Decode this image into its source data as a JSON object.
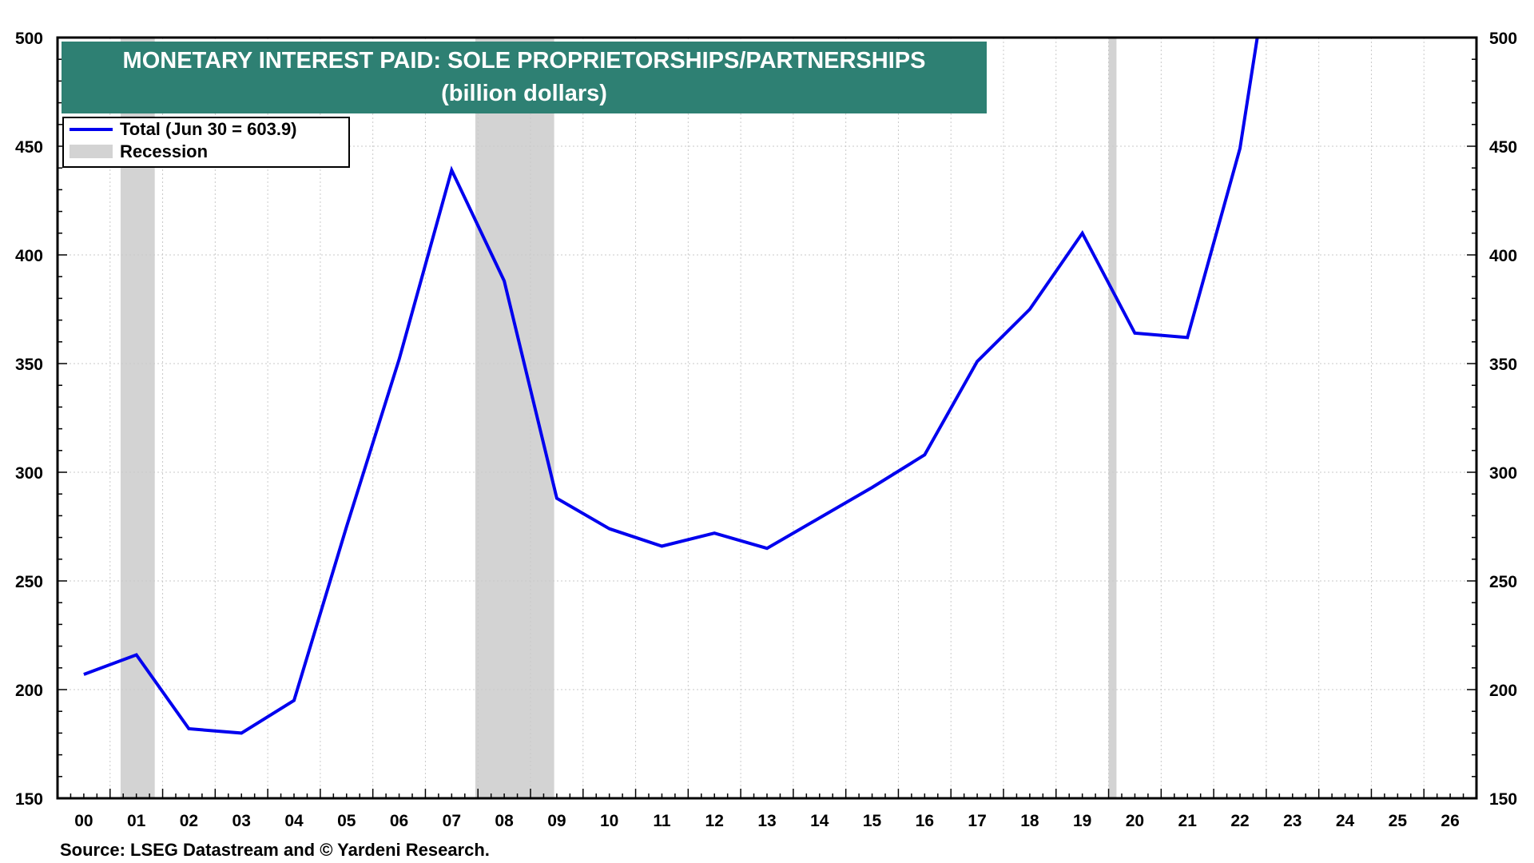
{
  "chart_data": {
    "type": "line",
    "title": "MONETARY INTEREST PAID: SOLE PROPRIETORSHIPS/PARTNERSHIPS",
    "subtitle": "(billion dollars)",
    "xlabel": "",
    "ylabel": "",
    "x_tick_labels": [
      "00",
      "01",
      "02",
      "03",
      "04",
      "05",
      "06",
      "07",
      "08",
      "09",
      "10",
      "11",
      "12",
      "13",
      "14",
      "15",
      "16",
      "17",
      "18",
      "19",
      "20",
      "21",
      "22",
      "23",
      "24",
      "25",
      "26"
    ],
    "xlim": [
      2000,
      2027
    ],
    "ylim": [
      150,
      500
    ],
    "y_ticks": [
      150,
      200,
      250,
      300,
      350,
      400,
      450,
      500
    ],
    "grid": true,
    "legend_placement": "top-left",
    "series": [
      {
        "name": "Total (Jun 30 = 603.9)",
        "color": "#0000ee",
        "x": [
          2000.5,
          2001.5,
          2002.5,
          2003.5,
          2004.5,
          2005.5,
          2006.5,
          2007.5,
          2008.5,
          2009.5,
          2010.5,
          2011.5,
          2012.5,
          2013.5,
          2014.5,
          2015.5,
          2016.5,
          2017.5,
          2018.5,
          2019.5,
          2020.5,
          2021.5,
          2022.5,
          2023.5
        ],
        "values": [
          207,
          216,
          182,
          180,
          195,
          275,
          352,
          439,
          388,
          288,
          274,
          266,
          272,
          265,
          279,
          293,
          308,
          351,
          375,
          410,
          364,
          362,
          449,
          603.9
        ]
      }
    ],
    "recessions": {
      "name": "Recession",
      "color": "#d3d3d3",
      "periods": [
        [
          2001.2,
          2001.85
        ],
        [
          2007.95,
          2009.45
        ],
        [
          2020.0,
          2020.15
        ]
      ]
    },
    "source": "Source: LSEG Datastream and © Yardeni Research.",
    "colors": {
      "title_background": "#2e8073",
      "grid": "#c8c8c8"
    }
  }
}
